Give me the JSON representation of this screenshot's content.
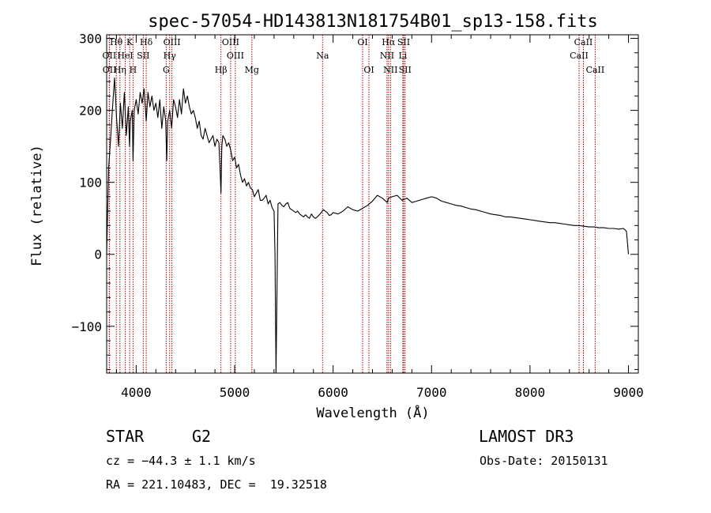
{
  "chart_data": {
    "type": "line",
    "title": "spec-57054-HD143813N181754B01_sp13-158.fits",
    "xlabel": "Wavelength (Å)",
    "ylabel": "Flux (relative)",
    "xlim": [
      3700,
      9100
    ],
    "ylim": [
      -165,
      305
    ],
    "xticks": [
      4000,
      5000,
      6000,
      7000,
      8000,
      9000
    ],
    "yticks": [
      -100,
      0,
      100,
      200,
      300
    ],
    "ytick_labels": [
      "−100",
      "0",
      "100",
      "200",
      "300"
    ],
    "spectrum": {
      "x": [
        3700,
        3720,
        3740,
        3760,
        3780,
        3800,
        3820,
        3840,
        3860,
        3880,
        3900,
        3920,
        3933,
        3940,
        3960,
        3968,
        3980,
        4000,
        4020,
        4040,
        4060,
        4080,
        4102,
        4120,
        4140,
        4160,
        4180,
        4200,
        4220,
        4240,
        4260,
        4280,
        4300,
        4310,
        4320,
        4340,
        4360,
        4380,
        4400,
        4420,
        4440,
        4460,
        4480,
        4500,
        4520,
        4540,
        4560,
        4580,
        4600,
        4620,
        4640,
        4660,
        4680,
        4700,
        4720,
        4740,
        4760,
        4780,
        4800,
        4820,
        4840,
        4850,
        4861,
        4870,
        4880,
        4900,
        4920,
        4940,
        4960,
        4980,
        5000,
        5020,
        5040,
        5060,
        5080,
        5100,
        5120,
        5140,
        5160,
        5180,
        5200,
        5220,
        5240,
        5260,
        5280,
        5300,
        5320,
        5340,
        5360,
        5380,
        5400,
        5410,
        5420,
        5440,
        5460,
        5480,
        5500,
        5520,
        5540,
        5560,
        5580,
        5600,
        5620,
        5640,
        5660,
        5680,
        5700,
        5720,
        5740,
        5760,
        5780,
        5800,
        5820,
        5840,
        5860,
        5880,
        5900,
        5920,
        5940,
        5960,
        5980,
        6000,
        6050,
        6100,
        6150,
        6200,
        6250,
        6300,
        6350,
        6400,
        6450,
        6500,
        6550,
        6563,
        6600,
        6650,
        6700,
        6750,
        6800,
        6850,
        6900,
        6950,
        7000,
        7050,
        7100,
        7150,
        7200,
        7250,
        7300,
        7350,
        7400,
        7450,
        7500,
        7550,
        7600,
        7650,
        7700,
        7750,
        7800,
        7850,
        7900,
        7950,
        8000,
        8050,
        8100,
        8150,
        8200,
        8250,
        8300,
        8350,
        8400,
        8450,
        8500,
        8550,
        8600,
        8650,
        8700,
        8750,
        8800,
        8850,
        8900,
        8950,
        8980,
        9000
      ],
      "y": [
        0,
        120,
        160,
        205,
        245,
        190,
        150,
        210,
        175,
        225,
        165,
        205,
        150,
        185,
        200,
        130,
        200,
        215,
        195,
        225,
        210,
        230,
        185,
        225,
        205,
        220,
        200,
        210,
        190,
        215,
        175,
        205,
        185,
        130,
        185,
        200,
        175,
        215,
        205,
        190,
        215,
        195,
        230,
        210,
        220,
        205,
        195,
        200,
        190,
        175,
        185,
        165,
        160,
        175,
        165,
        155,
        160,
        165,
        150,
        160,
        155,
        125,
        85,
        150,
        165,
        160,
        150,
        155,
        145,
        130,
        135,
        120,
        125,
        110,
        100,
        105,
        95,
        100,
        92,
        90,
        80,
        85,
        90,
        75,
        75,
        78,
        82,
        70,
        75,
        65,
        60,
        0,
        -170,
        70,
        72,
        68,
        66,
        70,
        72,
        64,
        62,
        60,
        58,
        60,
        56,
        54,
        52,
        55,
        52,
        50,
        56,
        52,
        50,
        52,
        55,
        58,
        62,
        60,
        58,
        54,
        55,
        58,
        56,
        60,
        66,
        62,
        60,
        64,
        68,
        74,
        82,
        78,
        72,
        78,
        80,
        82,
        75,
        78,
        72,
        74,
        76,
        78,
        80,
        78,
        74,
        72,
        70,
        68,
        67,
        65,
        63,
        62,
        60,
        58,
        56,
        55,
        54,
        52,
        52,
        51,
        50,
        49,
        48,
        47,
        46,
        45,
        44,
        44,
        43,
        42,
        41,
        40,
        40,
        39,
        38,
        38,
        37,
        37,
        36,
        36,
        35,
        36,
        32,
        0
      ]
    },
    "lines": [
      {
        "label": "Hθ",
        "x": 3798,
        "row": 1
      },
      {
        "label": "OII",
        "x": 3727,
        "row": 2
      },
      {
        "label": "OII",
        "x": 3729,
        "row": 3
      },
      {
        "label": "K",
        "x": 3934,
        "row": 1
      },
      {
        "label": "HeI",
        "x": 3889,
        "row": 2
      },
      {
        "label": "Hη",
        "x": 3835,
        "row": 3
      },
      {
        "label": "H",
        "x": 3968,
        "row": 3
      },
      {
        "label": "SII",
        "x": 4072,
        "row": 2
      },
      {
        "label": "Hδ",
        "x": 4102,
        "row": 1
      },
      {
        "label": "OIII",
        "x": 4363,
        "row": 1
      },
      {
        "label": "Hγ",
        "x": 4340,
        "row": 2
      },
      {
        "label": "G",
        "x": 4305,
        "row": 3
      },
      {
        "label": "Hβ",
        "x": 4861,
        "row": 3
      },
      {
        "label": "OIII",
        "x": 4959,
        "row": 1
      },
      {
        "label": "OIII",
        "x": 5007,
        "row": 2
      },
      {
        "label": "Mg",
        "x": 5175,
        "row": 3
      },
      {
        "label": "Na",
        "x": 5893,
        "row": 2
      },
      {
        "label": "OI",
        "x": 6300,
        "row": 1
      },
      {
        "label": "OI",
        "x": 6364,
        "row": 3
      },
      {
        "label": "Hα",
        "x": 6563,
        "row": 1
      },
      {
        "label": "NII",
        "x": 6548,
        "row": 2
      },
      {
        "label": "NII",
        "x": 6583,
        "row": 3
      },
      {
        "label": "SII",
        "x": 6717,
        "row": 1
      },
      {
        "label": "Li",
        "x": 6708,
        "row": 2
      },
      {
        "label": "SII",
        "x": 6731,
        "row": 3
      },
      {
        "label": "CaII",
        "x": 8542,
        "row": 1
      },
      {
        "label": "CaII",
        "x": 8498,
        "row": 2
      },
      {
        "label": "CaII",
        "x": 8662,
        "row": 3
      }
    ]
  },
  "info": {
    "class_label": "STAR",
    "subclass": "G2",
    "survey": "LAMOST DR3",
    "cz": "cz = −44.3 ± 1.1 km/s",
    "obs_date": "Obs-Date: 20150131",
    "coords": "RA = 221.10483, DEC =  19.32518"
  },
  "colors": {
    "line_marker": "#b00000",
    "spectrum": "#000000",
    "axes": "#000000"
  }
}
